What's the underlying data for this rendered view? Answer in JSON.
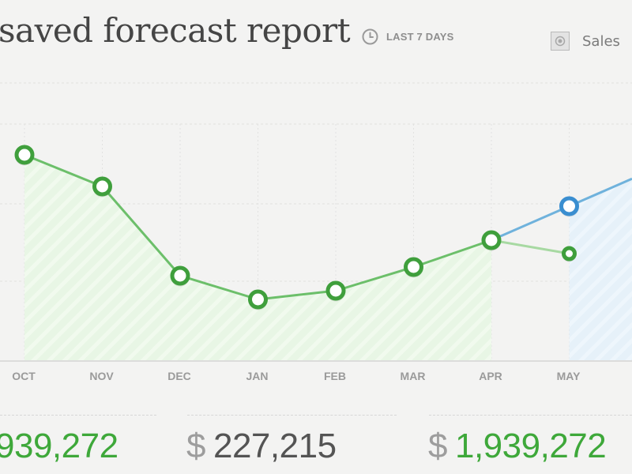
{
  "header": {
    "title": "saved forecast report",
    "range_label": "LAST 7 DAYS",
    "range_icon": "clock-icon",
    "legend_label": "Sales",
    "legend_icon": "radio-checkbox-icon"
  },
  "colors": {
    "actual": "#6cbf6a",
    "actual_marker": "#3f9f3c",
    "forecast": "#6fb2dc",
    "forecast_marker": "#3a8ed0",
    "projection": "#a7d9a2"
  },
  "chart_data": {
    "type": "line",
    "categories": [
      "OCT",
      "NOV",
      "DEC",
      "JAN",
      "FEB",
      "MAR",
      "APR",
      "MAY"
    ],
    "series": [
      {
        "values": [
          260,
          220,
          107,
          77,
          88,
          118,
          152,
          null
        ]
      },
      {
        "values": [
          null,
          null,
          null,
          null,
          null,
          null,
          152,
          195
        ]
      },
      {
        "values": [
          null,
          null,
          null,
          null,
          null,
          null,
          152,
          135
        ]
      }
    ],
    "ylim": [
      0,
      460
    ],
    "grid": true
  },
  "stats": [
    {
      "currency": "",
      "amount": "939,272"
    },
    {
      "currency": "$",
      "amount": "227,215"
    },
    {
      "currency": "$",
      "amount": "1,939,272"
    }
  ]
}
